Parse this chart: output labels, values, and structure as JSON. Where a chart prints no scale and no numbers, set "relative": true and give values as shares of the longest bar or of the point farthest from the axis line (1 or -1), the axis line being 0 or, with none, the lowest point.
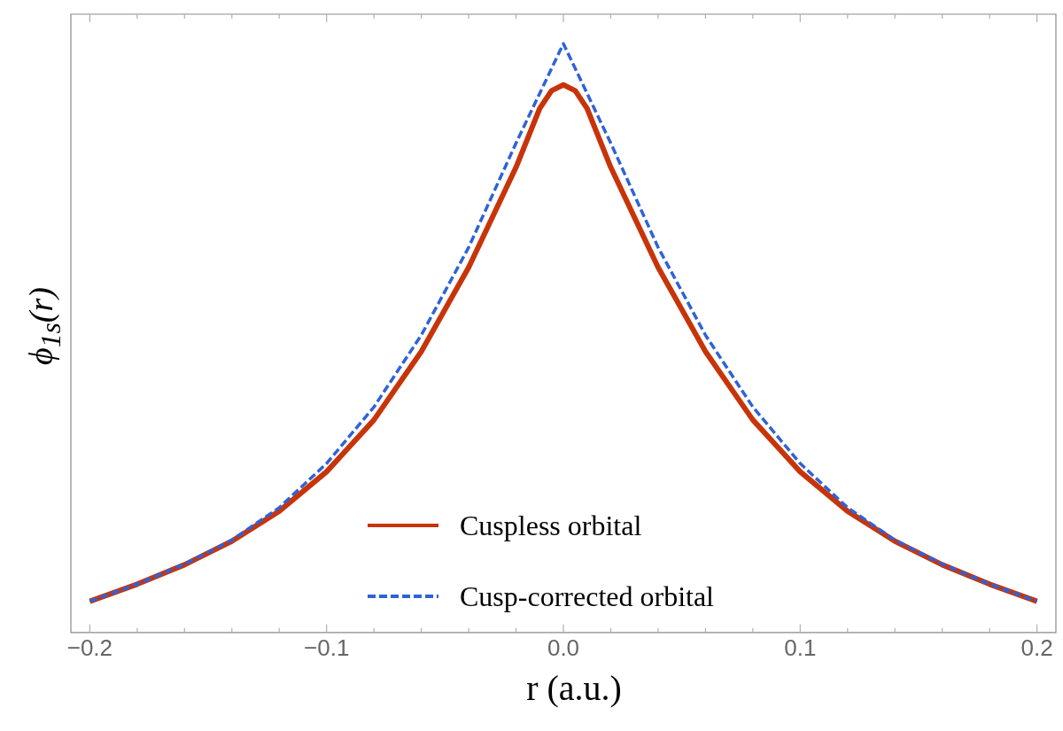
{
  "chart_data": {
    "type": "line",
    "xlabel": "r (a.u.)",
    "ylabel": "ϕ$_{1s}$(r)",
    "relative": true,
    "xlim": [
      -0.208,
      0.208
    ],
    "xticks": [
      {
        "value": -0.2,
        "label": "−0.2"
      },
      {
        "value": -0.18,
        "label": null
      },
      {
        "value": -0.16,
        "label": null
      },
      {
        "value": -0.14,
        "label": null
      },
      {
        "value": -0.12,
        "label": null
      },
      {
        "value": -0.1,
        "label": "−0.1"
      },
      {
        "value": -0.08,
        "label": null
      },
      {
        "value": -0.06,
        "label": null
      },
      {
        "value": -0.04,
        "label": null
      },
      {
        "value": -0.02,
        "label": null
      },
      {
        "value": 0,
        "label": "0.0"
      },
      {
        "value": 0.02,
        "label": null
      },
      {
        "value": 0.04,
        "label": null
      },
      {
        "value": 0.06,
        "label": null
      },
      {
        "value": 0.08,
        "label": null
      },
      {
        "value": 0.1,
        "label": "0.1"
      },
      {
        "value": 0.12,
        "label": null
      },
      {
        "value": 0.14,
        "label": null
      },
      {
        "value": 0.16,
        "label": null
      },
      {
        "value": 0.18,
        "label": null
      },
      {
        "value": 0.2,
        "label": "0.2"
      }
    ],
    "x": [
      -0.2,
      -0.18,
      -0.16,
      -0.14,
      -0.12,
      -0.1,
      -0.08,
      -0.06,
      -0.04,
      -0.02,
      -0.01,
      -0.005,
      0,
      0.005,
      0.01,
      0.02,
      0.04,
      0.06,
      0.08,
      0.1,
      0.12,
      0.14,
      0.16,
      0.18,
      0.2
    ],
    "legend": "bottom",
    "grid": false,
    "marker": "none",
    "series": [
      {
        "name": "Cuspless orbital",
        "color": "#c8340a",
        "line_style": "solid",
        "values": [
          0.053,
          0.082,
          0.115,
          0.155,
          0.206,
          0.273,
          0.361,
          0.477,
          0.62,
          0.79,
          0.89,
          0.92,
          0.93,
          0.92,
          0.89,
          0.79,
          0.62,
          0.477,
          0.361,
          0.273,
          0.206,
          0.155,
          0.115,
          0.082,
          0.053
        ]
      },
      {
        "name": "Cusp-corrected orbital",
        "color": "#2f62d8",
        "line_style": "dashed",
        "x": [
          -0.2,
          -0.18,
          -0.16,
          -0.14,
          -0.12,
          -0.1,
          -0.08,
          -0.06,
          -0.04,
          -0.02,
          0,
          0.02,
          0.04,
          0.06,
          0.08,
          0.1,
          0.12,
          0.14,
          0.16,
          0.18,
          0.2
        ],
        "values": [
          0.053,
          0.082,
          0.116,
          0.157,
          0.212,
          0.287,
          0.383,
          0.505,
          0.654,
          0.831,
          1,
          0.831,
          0.654,
          0.505,
          0.383,
          0.287,
          0.212,
          0.157,
          0.116,
          0.082,
          0.053
        ]
      }
    ]
  }
}
